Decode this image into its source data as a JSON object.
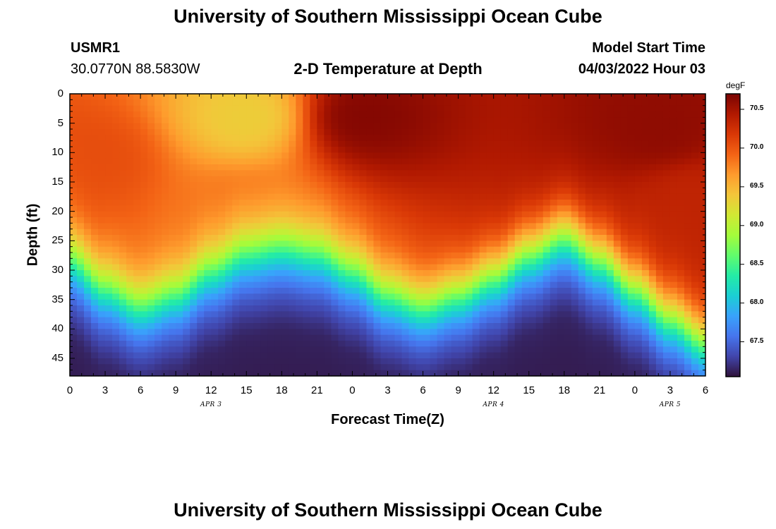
{
  "page_title": "University of Southern Mississippi Ocean Cube",
  "bottom_title": "University of Southern Mississippi Ocean Cube",
  "station": {
    "id": "USMR1",
    "coords": "30.0770N  88.5830W"
  },
  "model": {
    "label": "Model Start Time",
    "time": "04/03/2022 Hour 03"
  },
  "chart_data": {
    "type": "heatmap",
    "title": "2-D Temperature at Depth",
    "xlabel": "Forecast Time(Z)",
    "ylabel": "Depth (ft)",
    "x_tick_labels": [
      "0",
      "3",
      "6",
      "9",
      "12",
      "15",
      "18",
      "21",
      "0",
      "3",
      "6",
      "9",
      "12",
      "15",
      "18",
      "21",
      "0",
      "3",
      "6"
    ],
    "x_range_hours": [
      0,
      54
    ],
    "y_tick_labels": [
      "0",
      "5",
      "10",
      "15",
      "20",
      "25",
      "30",
      "35",
      "40",
      "45"
    ],
    "y_range_ft": [
      0,
      48
    ],
    "date_labels": [
      {
        "label": "APR 3",
        "hour": 12
      },
      {
        "label": "APR 4",
        "hour": 36
      },
      {
        "label": "APR 5",
        "hour": 51
      }
    ],
    "colorbar": {
      "unit": "degF",
      "range": [
        67.05,
        70.7
      ],
      "ticks": [
        "70.5",
        "70.0",
        "69.5",
        "69.0",
        "68.5",
        "68.0",
        "67.5"
      ],
      "tick_values": [
        70.5,
        70.0,
        69.5,
        69.0,
        68.5,
        68.0,
        67.5
      ],
      "colors": [
        "#30123b",
        "#4145ab",
        "#4675ed",
        "#39a2fc",
        "#1bcfd4",
        "#24eca6",
        "#61fc6c",
        "#a4fc3b",
        "#d1e834",
        "#f3c63a",
        "#fe9b2d",
        "#f36315",
        "#d93806",
        "#b11901",
        "#7a0402"
      ]
    },
    "thermocline_depth_ft": {
      "hours": [
        0,
        3,
        6,
        9,
        12,
        15,
        18,
        21,
        24,
        27,
        30,
        33,
        36,
        39,
        42,
        45,
        48,
        51,
        54
      ],
      "values": [
        28,
        33,
        36,
        34,
        30,
        27,
        26,
        27,
        30,
        34,
        36,
        34,
        31,
        27,
        24,
        28,
        33,
        38,
        42
      ]
    },
    "warm_core_nodes": [
      {
        "hour": 1.5,
        "depth": 11,
        "temp": 70.05
      },
      {
        "hour": 15,
        "depth": 4,
        "temp": 69.35
      },
      {
        "hour": 15,
        "depth": 20,
        "temp": 69.85
      },
      {
        "hour": 25,
        "depth": 4,
        "temp": 70.65
      },
      {
        "hour": 50,
        "depth": 6,
        "temp": 70.6
      },
      {
        "hour": 53,
        "depth": 18,
        "temp": 70.35
      }
    ]
  }
}
